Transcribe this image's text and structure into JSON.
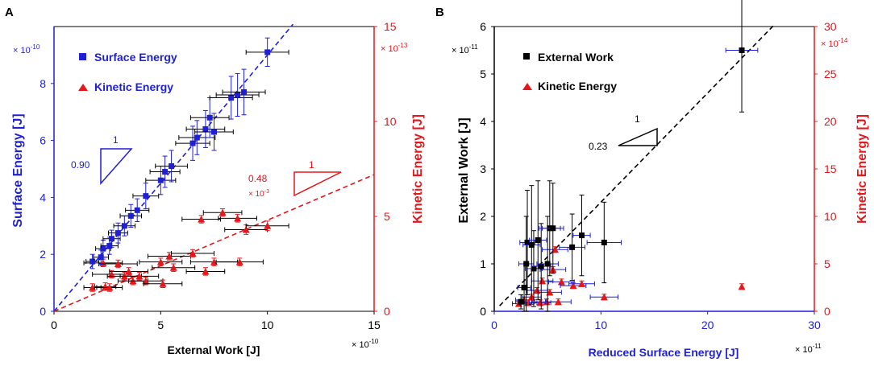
{
  "figure": {
    "panel_a_label": "A",
    "panel_b_label": "B"
  },
  "chart_data": [
    {
      "panel": "A",
      "type": "scatter",
      "title": "",
      "xlabel": "External Work [J]",
      "ylabel_left": "Surface Energy [J]",
      "ylabel_right": "Kinetic Energy [J]",
      "xlim": [
        0,
        15
      ],
      "ylim_left": [
        0,
        10
      ],
      "ylim_right": [
        0,
        15
      ],
      "x_ticks": [
        0,
        5,
        10,
        15
      ],
      "y_left_ticks": [
        0,
        2,
        4,
        6,
        8
      ],
      "y_right_ticks": [
        0,
        5,
        10,
        15
      ],
      "x_multiplier": "× 10",
      "x_multiplier_exp": "-10",
      "y_left_multiplier": "× 10",
      "y_left_multiplier_exp": "-10",
      "y_right_multiplier": "× 10",
      "y_right_multiplier_exp": "-13",
      "colors": {
        "left": "#1f1fd6",
        "right": "#e3171c",
        "frame": "#000000"
      },
      "legend": {
        "position": "top-left",
        "entries": [
          "Surface Energy",
          "Kinetic Energy"
        ]
      },
      "annotations": {
        "slope_left_value": "0.90",
        "slope_left_run": "1",
        "slope_right_value": "0.48",
        "slope_right_multiplier": "× 10",
        "slope_right_multiplier_exp": "-3",
        "slope_right_run": "1"
      },
      "fit_lines": [
        {
          "name": "surface-fit",
          "axis": "left",
          "slope": 0.9,
          "x_range": [
            0,
            11.2
          ]
        },
        {
          "name": "kinetic-fit",
          "axis": "right",
          "slope": 0.48,
          "x_range": [
            0,
            15
          ]
        }
      ],
      "series": [
        {
          "name": "Surface Energy",
          "axis": "left",
          "marker": "square",
          "points": [
            {
              "x": 1.8,
              "y": 1.75,
              "xerr": 0.3,
              "yerr": 0.25
            },
            {
              "x": 2.2,
              "y": 1.9,
              "xerr": 0.35,
              "yerr": 0.25
            },
            {
              "x": 2.3,
              "y": 2.2,
              "xerr": 0.35,
              "yerr": 0.3
            },
            {
              "x": 2.6,
              "y": 2.3,
              "xerr": 0.4,
              "yerr": 0.3
            },
            {
              "x": 2.7,
              "y": 2.55,
              "xerr": 0.4,
              "yerr": 0.3
            },
            {
              "x": 3.0,
              "y": 2.75,
              "xerr": 0.45,
              "yerr": 0.35
            },
            {
              "x": 3.3,
              "y": 3.0,
              "xerr": 0.5,
              "yerr": 0.35
            },
            {
              "x": 3.6,
              "y": 3.35,
              "xerr": 0.5,
              "yerr": 0.4
            },
            {
              "x": 3.9,
              "y": 3.55,
              "xerr": 0.55,
              "yerr": 0.4
            },
            {
              "x": 4.3,
              "y": 4.05,
              "xerr": 0.6,
              "yerr": 0.45
            },
            {
              "x": 5.0,
              "y": 4.6,
              "xerr": 0.7,
              "yerr": 0.5
            },
            {
              "x": 5.2,
              "y": 4.9,
              "xerr": 0.7,
              "yerr": 0.55
            },
            {
              "x": 5.5,
              "y": 5.1,
              "xerr": 0.75,
              "yerr": 0.55
            },
            {
              "x": 6.5,
              "y": 5.9,
              "xerr": 0.8,
              "yerr": 0.6
            },
            {
              "x": 6.7,
              "y": 6.1,
              "xerr": 0.85,
              "yerr": 0.6
            },
            {
              "x": 7.1,
              "y": 6.4,
              "xerr": 0.9,
              "yerr": 0.65
            },
            {
              "x": 7.3,
              "y": 6.8,
              "xerr": 0.9,
              "yerr": 0.7
            },
            {
              "x": 7.5,
              "y": 6.3,
              "xerr": 0.9,
              "yerr": 0.65
            },
            {
              "x": 8.3,
              "y": 7.5,
              "xerr": 1.0,
              "yerr": 0.75
            },
            {
              "x": 8.6,
              "y": 7.6,
              "xerr": 1.0,
              "yerr": 0.75
            },
            {
              "x": 8.9,
              "y": 7.7,
              "xerr": 1.0,
              "yerr": 0.8
            },
            {
              "x": 10.0,
              "y": 9.1,
              "xerr": 1.0,
              "yerr": 0.5
            }
          ]
        },
        {
          "name": "Kinetic Energy",
          "axis": "right",
          "marker": "triangle",
          "points": [
            {
              "x": 1.8,
              "y": 1.25,
              "xerr": 0.4,
              "yerr": 0.2
            },
            {
              "x": 2.3,
              "y": 2.55,
              "xerr": 0.9,
              "yerr": 0.2
            },
            {
              "x": 2.4,
              "y": 1.3,
              "xerr": 0.5,
              "yerr": 0.2
            },
            {
              "x": 2.6,
              "y": 1.25,
              "xerr": 0.6,
              "yerr": 0.2
            },
            {
              "x": 2.7,
              "y": 1.95,
              "xerr": 0.9,
              "yerr": 0.2
            },
            {
              "x": 3.0,
              "y": 2.5,
              "xerr": 0.9,
              "yerr": 0.2
            },
            {
              "x": 3.3,
              "y": 1.85,
              "xerr": 0.8,
              "yerr": 0.2
            },
            {
              "x": 3.5,
              "y": 2.1,
              "xerr": 0.9,
              "yerr": 0.2
            },
            {
              "x": 3.7,
              "y": 1.6,
              "xerr": 0.7,
              "yerr": 0.2
            },
            {
              "x": 4.0,
              "y": 1.85,
              "xerr": 0.9,
              "yerr": 0.2
            },
            {
              "x": 4.3,
              "y": 1.6,
              "xerr": 0.8,
              "yerr": 0.2
            },
            {
              "x": 5.0,
              "y": 2.6,
              "xerr": 1.0,
              "yerr": 0.2
            },
            {
              "x": 5.1,
              "y": 1.45,
              "xerr": 0.9,
              "yerr": 0.2
            },
            {
              "x": 5.4,
              "y": 2.9,
              "xerr": 1.0,
              "yerr": 0.2
            },
            {
              "x": 5.6,
              "y": 2.3,
              "xerr": 1.0,
              "yerr": 0.2
            },
            {
              "x": 6.5,
              "y": 3.05,
              "xerr": 1.0,
              "yerr": 0.2
            },
            {
              "x": 6.9,
              "y": 4.85,
              "xerr": 0.9,
              "yerr": 0.2
            },
            {
              "x": 7.1,
              "y": 2.1,
              "xerr": 0.9,
              "yerr": 0.2
            },
            {
              "x": 7.5,
              "y": 2.6,
              "xerr": 1.1,
              "yerr": 0.2
            },
            {
              "x": 7.9,
              "y": 5.2,
              "xerr": 0.9,
              "yerr": 0.2
            },
            {
              "x": 8.6,
              "y": 4.9,
              "xerr": 0.9,
              "yerr": 0.2
            },
            {
              "x": 8.7,
              "y": 2.6,
              "xerr": 1.1,
              "yerr": 0.2
            },
            {
              "x": 9.0,
              "y": 4.3,
              "xerr": 1.0,
              "yerr": 0.25
            },
            {
              "x": 10.0,
              "y": 4.5,
              "xerr": 1.0,
              "yerr": 0.25
            }
          ]
        }
      ]
    },
    {
      "panel": "B",
      "type": "scatter",
      "title": "",
      "xlabel": "Reduced Surface Energy [J]",
      "ylabel_left": "External Work [J]",
      "ylabel_right": "Kinetic Energy [J]",
      "xlim": [
        0,
        30
      ],
      "ylim_left": [
        0,
        6
      ],
      "ylim_right": [
        0,
        30
      ],
      "x_ticks": [
        0,
        10,
        20,
        30
      ],
      "y_left_ticks": [
        0,
        1,
        2,
        3,
        4,
        5,
        6
      ],
      "y_right_ticks": [
        0,
        5,
        10,
        15,
        20,
        25,
        30
      ],
      "x_multiplier": "× 10",
      "x_multiplier_exp": "-11",
      "y_left_multiplier": "× 10",
      "y_left_multiplier_exp": "-11",
      "y_right_multiplier": "× 10",
      "y_right_multiplier_exp": "-14",
      "colors": {
        "left": "#000000",
        "right": "#e3171c",
        "x": "#1f1fd6",
        "frame": "#000000"
      },
      "legend": {
        "position": "top-left",
        "entries": [
          "External Work",
          "Kinetic Energy"
        ]
      },
      "annotations": {
        "slope_value": "0.23",
        "slope_run": "1"
      },
      "fit_lines": [
        {
          "name": "work-fit",
          "axis": "left",
          "slope": 0.23,
          "x_range": [
            0.5,
            26.2
          ]
        }
      ],
      "series": [
        {
          "name": "External Work",
          "axis": "left",
          "marker": "square",
          "points": [
            {
              "x": 2.5,
              "y": 0.2,
              "xerr": 0.5,
              "yerr": 0.15
            },
            {
              "x": 2.8,
              "y": 0.5,
              "xerr": 0.6,
              "yerr": 0.5
            },
            {
              "x": 3.0,
              "y": 1.0,
              "xerr": 0.7,
              "yerr": 1.0
            },
            {
              "x": 3.1,
              "y": 1.45,
              "xerr": 0.7,
              "yerr": 1.1
            },
            {
              "x": 3.5,
              "y": 1.4,
              "xerr": 0.8,
              "yerr": 1.25
            },
            {
              "x": 3.7,
              "y": 0.9,
              "xerr": 0.8,
              "yerr": 0.8
            },
            {
              "x": 4.1,
              "y": 1.5,
              "xerr": 0.8,
              "yerr": 1.25
            },
            {
              "x": 4.4,
              "y": 0.95,
              "xerr": 0.9,
              "yerr": 0.9
            },
            {
              "x": 5.0,
              "y": 1.0,
              "xerr": 1.0,
              "yerr": 1.0
            },
            {
              "x": 5.2,
              "y": 1.75,
              "xerr": 1.0,
              "yerr": 1.0
            },
            {
              "x": 5.5,
              "y": 1.75,
              "xerr": 1.0,
              "yerr": 0.95
            },
            {
              "x": 7.3,
              "y": 1.35,
              "xerr": 1.2,
              "yerr": 0.7
            },
            {
              "x": 8.2,
              "y": 1.6,
              "xerr": 0.8,
              "yerr": 0.85
            },
            {
              "x": 10.3,
              "y": 1.45,
              "xerr": 1.6,
              "yerr": 0.85
            },
            {
              "x": 23.2,
              "y": 5.5,
              "xerr": 1.5,
              "yerr": 1.3
            }
          ]
        },
        {
          "name": "Kinetic Energy",
          "axis": "right",
          "marker": "triangle",
          "points": [
            {
              "x": 2.3,
              "y": 0.8,
              "xerr": 0.6,
              "yerr": 0.3
            },
            {
              "x": 2.8,
              "y": 1.2,
              "xerr": 0.8,
              "yerr": 0.3
            },
            {
              "x": 3.2,
              "y": 0.9,
              "xerr": 0.8,
              "yerr": 0.3
            },
            {
              "x": 3.5,
              "y": 1.5,
              "xerr": 0.9,
              "yerr": 0.3
            },
            {
              "x": 4.0,
              "y": 2.2,
              "xerr": 1.0,
              "yerr": 0.3
            },
            {
              "x": 4.3,
              "y": 0.9,
              "xerr": 1.0,
              "yerr": 0.3
            },
            {
              "x": 4.5,
              "y": 3.2,
              "xerr": 1.0,
              "yerr": 0.3
            },
            {
              "x": 4.9,
              "y": 1.0,
              "xerr": 1.1,
              "yerr": 0.3
            },
            {
              "x": 5.2,
              "y": 2.0,
              "xerr": 1.1,
              "yerr": 0.3
            },
            {
              "x": 5.5,
              "y": 4.4,
              "xerr": 1.2,
              "yerr": 0.3
            },
            {
              "x": 5.7,
              "y": 6.5,
              "xerr": 1.2,
              "yerr": 0.3
            },
            {
              "x": 6.0,
              "y": 1.0,
              "xerr": 1.2,
              "yerr": 0.3
            },
            {
              "x": 6.3,
              "y": 3.1,
              "xerr": 1.2,
              "yerr": 0.3
            },
            {
              "x": 7.4,
              "y": 2.7,
              "xerr": 1.2,
              "yerr": 0.3
            },
            {
              "x": 8.2,
              "y": 2.9,
              "xerr": 1.2,
              "yerr": 0.3
            },
            {
              "x": 10.3,
              "y": 1.5,
              "xerr": 1.3,
              "yerr": 0.3
            },
            {
              "x": 23.2,
              "y": 2.6,
              "xerr": 0.0,
              "yerr": 0.3
            }
          ]
        }
      ]
    }
  ]
}
